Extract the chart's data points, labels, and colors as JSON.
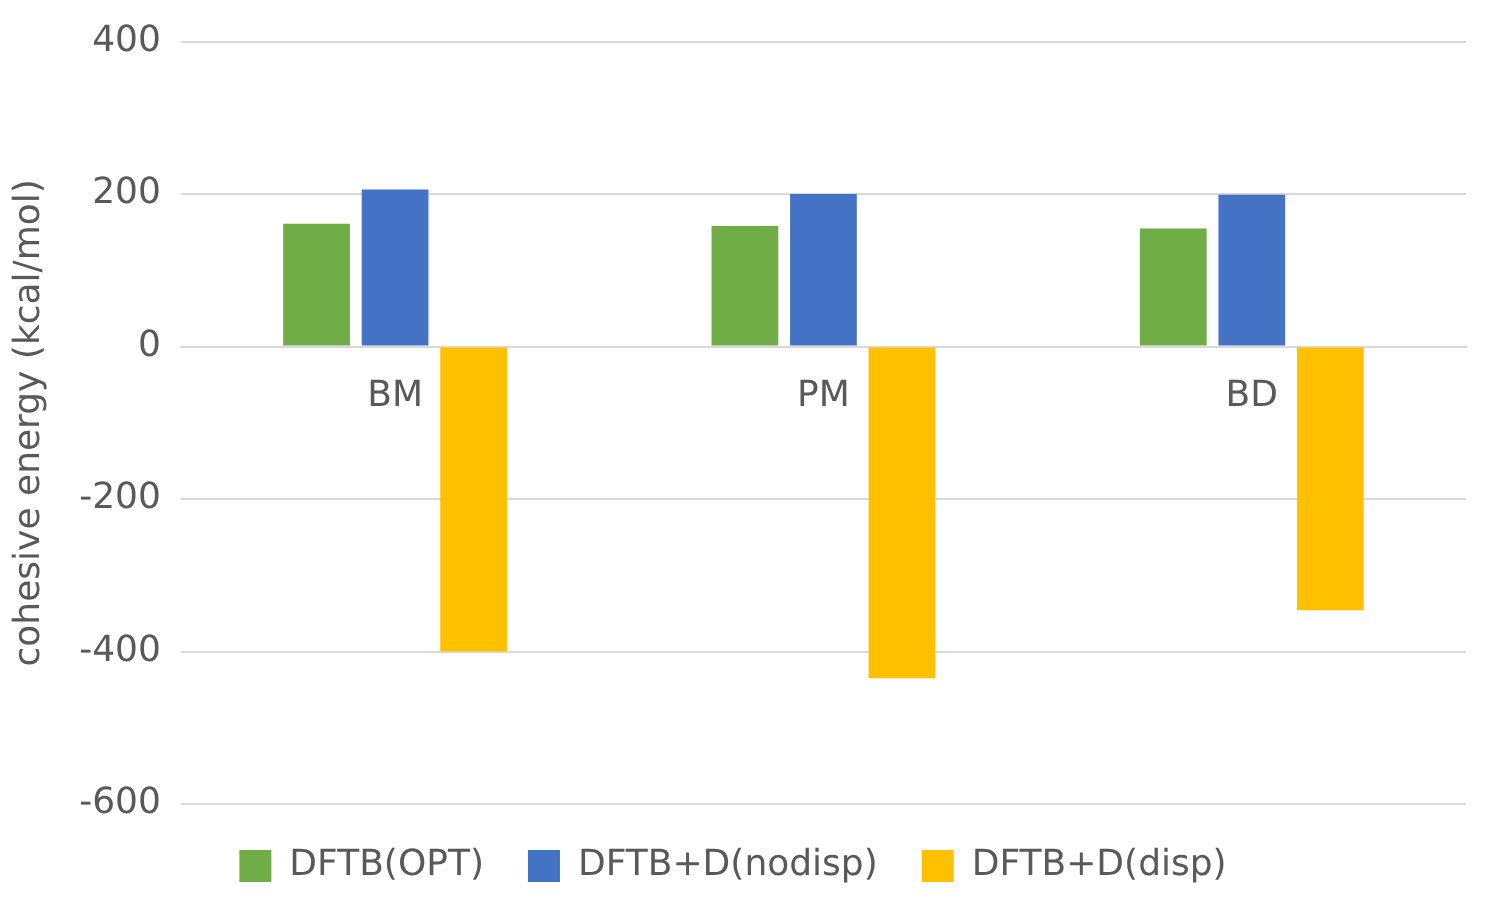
{
  "chart_data": {
    "type": "bar",
    "ylabel": "cohesive energy (kcal/mol)",
    "categories": [
      "BM",
      "PM",
      "BD"
    ],
    "series": [
      {
        "name": "DFTB(OPT)",
        "color": "#70ad47",
        "values": [
          161,
          158,
          155
        ]
      },
      {
        "name": "DFTB+D(nodisp)",
        "color": "#4472c4",
        "values": [
          206,
          200,
          199
        ]
      },
      {
        "name": "DFTB+D(disp)",
        "color": "#ffc000",
        "values": [
          -400,
          -435,
          -346
        ]
      }
    ],
    "ylim": [
      -600,
      400
    ],
    "yticks": [
      -600,
      -400,
      -200,
      0,
      200,
      400
    ],
    "grid": "y",
    "legend": "bottom"
  }
}
